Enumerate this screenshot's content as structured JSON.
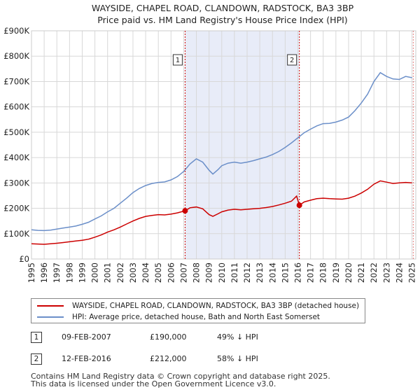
{
  "chart_data": {
    "type": "line",
    "title": "WAYSIDE, CHAPEL ROAD, CLANDOWN, RADSTOCK, BA3 3BP",
    "subtitle": "Price paid vs. HM Land Registry's House Price Index (HPI)",
    "xlim": [
      1995,
      2025.3
    ],
    "ylim": [
      0,
      900000
    ],
    "x_ticks": [
      1995,
      1996,
      1997,
      1998,
      1999,
      2000,
      2001,
      2002,
      2003,
      2004,
      2005,
      2006,
      2007,
      2008,
      2009,
      2010,
      2011,
      2012,
      2013,
      2014,
      2015,
      2016,
      2017,
      2018,
      2019,
      2020,
      2021,
      2022,
      2023,
      2024,
      2025
    ],
    "y_ticks": [
      {
        "value": 0,
        "label": "£0"
      },
      {
        "value": 100000,
        "label": "£100K"
      },
      {
        "value": 200000,
        "label": "£200K"
      },
      {
        "value": 300000,
        "label": "£300K"
      },
      {
        "value": 400000,
        "label": "£400K"
      },
      {
        "value": 500000,
        "label": "£500K"
      },
      {
        "value": 600000,
        "label": "£600K"
      },
      {
        "value": 700000,
        "label": "£700K"
      },
      {
        "value": 800000,
        "label": "£800K"
      },
      {
        "value": 900000,
        "label": "£900K"
      }
    ],
    "shaded_region": [
      2007.11,
      2016.12
    ],
    "series": [
      {
        "name": "WAYSIDE, CHAPEL ROAD, CLANDOWN, RADSTOCK, BA3 3BP (detached house)",
        "color": "#cc0000",
        "points": [
          [
            1995.0,
            60000
          ],
          [
            1995.5,
            59000
          ],
          [
            1996.0,
            58000
          ],
          [
            1996.5,
            60000
          ],
          [
            1997.0,
            62000
          ],
          [
            1997.5,
            65000
          ],
          [
            1998.0,
            68000
          ],
          [
            1998.5,
            71000
          ],
          [
            1999.0,
            74000
          ],
          [
            1999.5,
            78000
          ],
          [
            2000.0,
            86000
          ],
          [
            2000.5,
            95000
          ],
          [
            2001.0,
            106000
          ],
          [
            2001.5,
            115000
          ],
          [
            2002.0,
            126000
          ],
          [
            2002.5,
            138000
          ],
          [
            2003.0,
            150000
          ],
          [
            2003.5,
            160000
          ],
          [
            2004.0,
            168000
          ],
          [
            2004.5,
            172000
          ],
          [
            2005.0,
            175000
          ],
          [
            2005.5,
            174000
          ],
          [
            2006.0,
            177000
          ],
          [
            2006.5,
            182000
          ],
          [
            2007.11,
            190000
          ],
          [
            2007.5,
            202000
          ],
          [
            2008.0,
            205000
          ],
          [
            2008.5,
            198000
          ],
          [
            2009.0,
            175000
          ],
          [
            2009.3,
            168000
          ],
          [
            2009.7,
            178000
          ],
          [
            2010.0,
            186000
          ],
          [
            2010.5,
            193000
          ],
          [
            2011.0,
            196000
          ],
          [
            2011.5,
            194000
          ],
          [
            2012.0,
            196000
          ],
          [
            2012.5,
            198000
          ],
          [
            2013.0,
            200000
          ],
          [
            2013.5,
            203000
          ],
          [
            2014.0,
            207000
          ],
          [
            2014.5,
            213000
          ],
          [
            2015.0,
            220000
          ],
          [
            2015.5,
            228000
          ],
          [
            2015.9,
            248000
          ],
          [
            2016.12,
            212000
          ],
          [
            2016.5,
            225000
          ],
          [
            2017.0,
            232000
          ],
          [
            2017.5,
            238000
          ],
          [
            2018.0,
            240000
          ],
          [
            2018.5,
            238000
          ],
          [
            2019.0,
            237000
          ],
          [
            2019.5,
            236000
          ],
          [
            2020.0,
            240000
          ],
          [
            2020.5,
            248000
          ],
          [
            2021.0,
            260000
          ],
          [
            2021.5,
            275000
          ],
          [
            2022.0,
            295000
          ],
          [
            2022.5,
            308000
          ],
          [
            2023.0,
            303000
          ],
          [
            2023.5,
            298000
          ],
          [
            2024.0,
            300000
          ],
          [
            2024.5,
            302000
          ],
          [
            2025.0,
            300000
          ]
        ]
      },
      {
        "name": "HPI: Average price, detached house, Bath and North East Somerset",
        "color": "#6b8fc9",
        "points": [
          [
            1995.0,
            115000
          ],
          [
            1995.5,
            113000
          ],
          [
            1996.0,
            112000
          ],
          [
            1996.5,
            114000
          ],
          [
            1997.0,
            118000
          ],
          [
            1997.5,
            122000
          ],
          [
            1998.0,
            126000
          ],
          [
            1998.5,
            130000
          ],
          [
            1999.0,
            137000
          ],
          [
            1999.5,
            145000
          ],
          [
            2000.0,
            158000
          ],
          [
            2000.5,
            170000
          ],
          [
            2001.0,
            186000
          ],
          [
            2001.5,
            200000
          ],
          [
            2002.0,
            220000
          ],
          [
            2002.5,
            240000
          ],
          [
            2003.0,
            262000
          ],
          [
            2003.5,
            278000
          ],
          [
            2004.0,
            290000
          ],
          [
            2004.5,
            298000
          ],
          [
            2005.0,
            302000
          ],
          [
            2005.5,
            304000
          ],
          [
            2006.0,
            312000
          ],
          [
            2006.5,
            325000
          ],
          [
            2007.0,
            345000
          ],
          [
            2007.5,
            375000
          ],
          [
            2008.0,
            395000
          ],
          [
            2008.5,
            382000
          ],
          [
            2009.0,
            350000
          ],
          [
            2009.3,
            335000
          ],
          [
            2009.7,
            352000
          ],
          [
            2010.0,
            368000
          ],
          [
            2010.5,
            378000
          ],
          [
            2011.0,
            382000
          ],
          [
            2011.5,
            378000
          ],
          [
            2012.0,
            382000
          ],
          [
            2012.5,
            388000
          ],
          [
            2013.0,
            395000
          ],
          [
            2013.5,
            402000
          ],
          [
            2014.0,
            412000
          ],
          [
            2014.5,
            424000
          ],
          [
            2015.0,
            440000
          ],
          [
            2015.5,
            458000
          ],
          [
            2016.0,
            478000
          ],
          [
            2016.5,
            498000
          ],
          [
            2017.0,
            512000
          ],
          [
            2017.5,
            525000
          ],
          [
            2018.0,
            534000
          ],
          [
            2018.5,
            535000
          ],
          [
            2019.0,
            540000
          ],
          [
            2019.5,
            548000
          ],
          [
            2020.0,
            560000
          ],
          [
            2020.5,
            585000
          ],
          [
            2021.0,
            615000
          ],
          [
            2021.5,
            650000
          ],
          [
            2022.0,
            700000
          ],
          [
            2022.5,
            735000
          ],
          [
            2023.0,
            720000
          ],
          [
            2023.5,
            710000
          ],
          [
            2024.0,
            708000
          ],
          [
            2024.5,
            720000
          ],
          [
            2025.0,
            715000
          ]
        ]
      }
    ],
    "markers": [
      {
        "label": "1",
        "x": 2007.11,
        "y": 190000
      },
      {
        "label": "2",
        "x": 2016.12,
        "y": 212000
      }
    ]
  },
  "legend": {
    "items": [
      {
        "label": "WAYSIDE, CHAPEL ROAD, CLANDOWN, RADSTOCK, BA3 3BP (detached house)",
        "color": "#cc0000"
      },
      {
        "label": "HPI: Average price, detached house, Bath and North East Somerset",
        "color": "#6b8fc9"
      }
    ]
  },
  "sales": [
    {
      "num": "1",
      "date": "09-FEB-2007",
      "price": "£190,000",
      "hpi": "49% ↓ HPI"
    },
    {
      "num": "2",
      "date": "12-FEB-2016",
      "price": "£212,000",
      "hpi": "58% ↓ HPI"
    }
  ],
  "footer": {
    "line1": "Contains HM Land Registry data © Crown copyright and database right 2025.",
    "line2": "This data is licensed under the Open Government Licence v3.0."
  }
}
